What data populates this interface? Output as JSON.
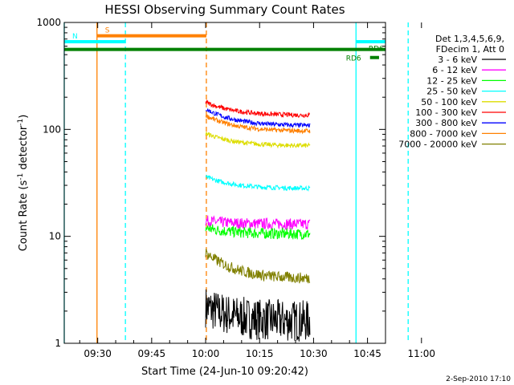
{
  "chart_data": {
    "type": "line",
    "title": "HESSI Observing Summary Count Rates",
    "xlabel": "Start Time (24-Jun-10 09:20:42)",
    "ylabel_main": "Count Rate (s",
    "ylabel_sup1": "-1",
    "ylabel_mid": " detector",
    "ylabel_sup2": "-1",
    "ylabel_end": ")",
    "ylog": true,
    "ylim": [
      1,
      1000
    ],
    "xlim_min": [
      20.7,
      110
    ],
    "x_ticks": [
      {
        "m": 30,
        "label": "09:30"
      },
      {
        "m": 45,
        "label": "09:45"
      },
      {
        "m": 60,
        "label": "10:00"
      },
      {
        "m": 75,
        "label": "10:15"
      },
      {
        "m": 90,
        "label": "10:30"
      },
      {
        "m": 105,
        "label": "10:45"
      },
      {
        "m": 120,
        "label": "11:00"
      }
    ],
    "y_ticks": [
      {
        "v": 1,
        "label": "1"
      },
      {
        "v": 10,
        "label": "10"
      },
      {
        "v": 100,
        "label": "100"
      },
      {
        "v": 1000,
        "label": "1000"
      }
    ],
    "legend_header": [
      "Det 1,3,4,5,6,9,",
      "FDecim 1, Att 0"
    ],
    "data_interval_min": [
      60.0,
      89.0
    ],
    "series": [
      {
        "name": "3 - 6 keV",
        "color": "#000000",
        "start": 2.2,
        "end": 1.6
      },
      {
        "name": "6 - 12 keV",
        "color": "#ff00ff",
        "start": 14,
        "end": 13
      },
      {
        "name": "12 - 25 keV",
        "color": "#00ff00",
        "start": 12,
        "end": 10.5
      },
      {
        "name": "25 - 50 keV",
        "color": "#00ffff",
        "start": 36,
        "end": 28
      },
      {
        "name": "50 - 100 keV",
        "color": "#dddd00",
        "start": 92,
        "end": 70
      },
      {
        "name": "100 - 300 keV",
        "color": "#ff0000",
        "start": 180,
        "end": 135
      },
      {
        "name": "300 - 800 keV",
        "color": "#0000ff",
        "start": 155,
        "end": 108
      },
      {
        "name": "800 - 7000 keV",
        "color": "#ff8000",
        "start": 135,
        "end": 96
      },
      {
        "name": "7000 - 20000 keV",
        "color": "#808000",
        "start": 7,
        "end": 4
      }
    ],
    "flag_bars": [
      {
        "label": "S",
        "color": "#ff8000",
        "y": 750,
        "x0": 29.8,
        "x1": 60.2
      },
      {
        "label": "N",
        "color": "#00ffff",
        "y": 660,
        "x0": 20.7,
        "x1": 37.7
      },
      {
        "label": "",
        "color": "#00ffff",
        "y": 660,
        "x0": 101.8,
        "x1": 110
      },
      {
        "label": "",
        "color": "#008000",
        "y": 560,
        "x0": 20.7,
        "x1": 110
      },
      {
        "label": "RD6",
        "color": "#008000",
        "y": 470,
        "x0": 105.7,
        "x1": 108.2
      }
    ],
    "flag_text_extra": "RD6",
    "vlines": [
      {
        "m": 20.7,
        "color": "#00ffff",
        "dash": false
      },
      {
        "m": 29.8,
        "color": "#ff8000",
        "dash": false
      },
      {
        "m": 37.7,
        "color": "#00ffff",
        "dash": true
      },
      {
        "m": 60.2,
        "color": "#ff8000",
        "dash": true
      },
      {
        "m": 101.8,
        "color": "#00ffff",
        "dash": false
      },
      {
        "m": 116.3,
        "color": "#00ffff",
        "dash": true
      }
    ],
    "footer": "2-Sep-2010 17:10"
  }
}
